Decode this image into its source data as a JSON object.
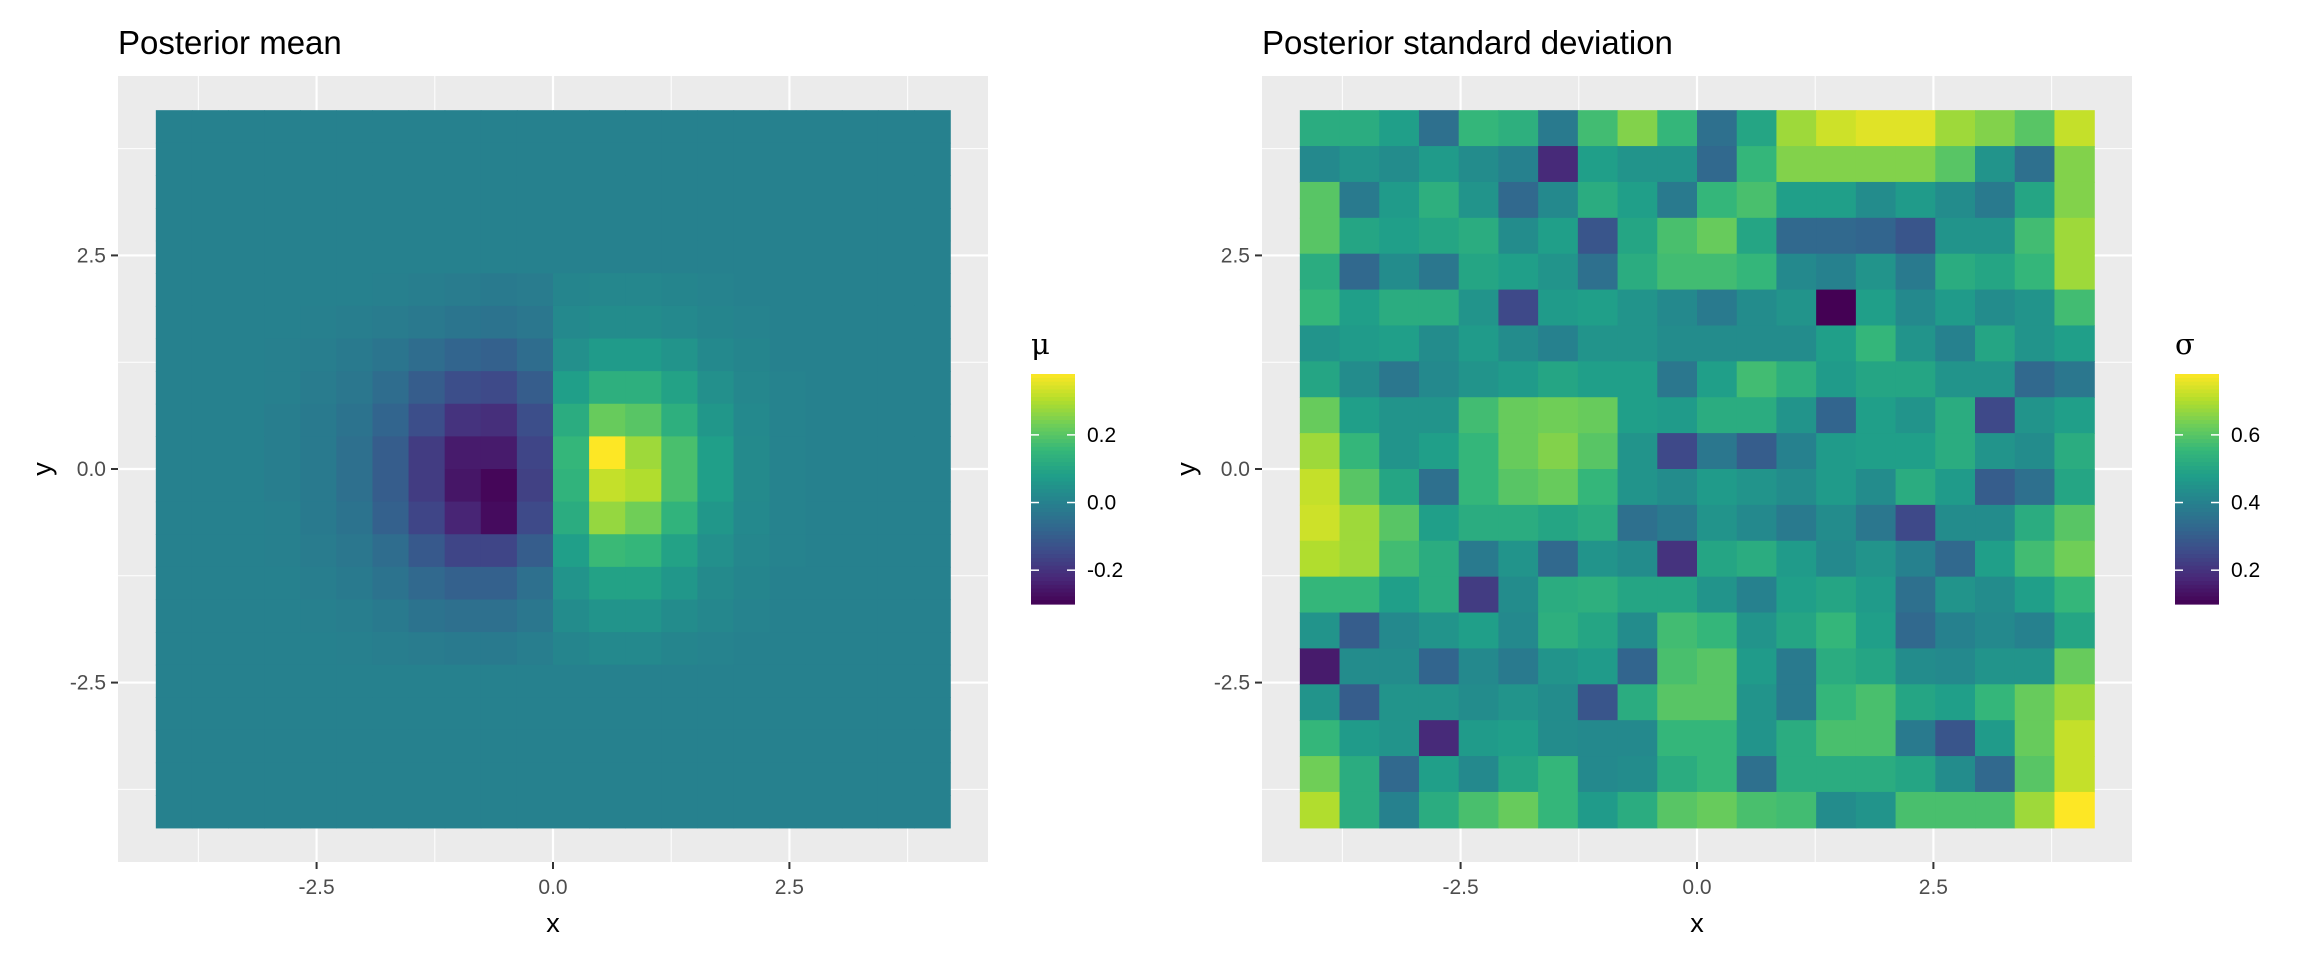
{
  "chart_data": [
    {
      "type": "heatmap",
      "title": "Posterior mean",
      "xlabel": "x",
      "ylabel": "y",
      "x_ticks": [
        "-2.5",
        "0.0",
        "2.5"
      ],
      "x_tick_values": [
        -2.5,
        0.0,
        2.5
      ],
      "y_ticks": [
        "2.5",
        "0.0",
        "-2.5"
      ],
      "y_tick_values": [
        2.5,
        0.0,
        -2.5
      ],
      "xlim": [
        -4.6,
        4.6
      ],
      "ylim": [
        -4.6,
        4.6
      ],
      "grid": true,
      "legend": {
        "title": "μ",
        "position": "right",
        "ticks": [
          "0.2",
          "0.0",
          "-0.2"
        ],
        "tick_values": [
          0.2,
          0.0,
          -0.2
        ],
        "range": [
          -0.3,
          0.38
        ]
      },
      "x_range": [
        -4.2,
        4.2
      ],
      "y_range": [
        -4.2,
        4.2
      ],
      "values": [
        [
          0,
          0,
          0,
          0,
          0,
          0,
          0,
          0,
          0,
          0,
          0,
          0,
          0,
          0,
          0,
          0,
          0,
          0,
          0,
          0,
          0,
          0
        ],
        [
          0,
          0,
          0,
          0,
          0,
          0,
          0,
          0,
          0,
          0,
          0,
          0,
          0,
          0,
          0,
          0,
          0,
          0,
          0,
          0,
          0,
          0
        ],
        [
          0,
          0,
          0,
          0,
          0,
          0,
          0,
          0,
          0,
          0,
          0,
          0,
          0,
          0,
          0,
          0,
          0,
          0,
          0,
          0,
          0,
          0
        ],
        [
          0,
          0,
          0,
          0,
          0,
          0,
          0,
          0,
          0,
          0,
          0,
          0,
          0,
          0,
          0,
          0,
          0,
          0,
          0,
          0,
          0,
          0
        ],
        [
          0,
          0,
          0,
          0,
          0,
          0,
          0,
          0,
          0,
          0,
          0,
          0,
          0,
          0,
          0,
          0,
          0,
          0,
          0,
          0,
          0,
          0
        ],
        [
          0,
          0,
          0,
          0,
          0,
          0,
          -0.005,
          -0.01,
          -0.015,
          -0.02,
          -0.015,
          0.01,
          0.015,
          0.015,
          0.01,
          0.005,
          0,
          0,
          0,
          0,
          0,
          0
        ],
        [
          0,
          0,
          0,
          0,
          -0.005,
          -0.01,
          -0.015,
          -0.025,
          -0.035,
          -0.04,
          -0.03,
          0.02,
          0.03,
          0.03,
          0.02,
          0.01,
          0.005,
          0,
          0,
          0,
          0,
          0
        ],
        [
          0,
          0,
          0,
          -0.005,
          -0.01,
          -0.02,
          -0.035,
          -0.06,
          -0.08,
          -0.09,
          -0.06,
          0.04,
          0.07,
          0.07,
          0.05,
          0.02,
          0.01,
          0,
          0,
          0,
          0,
          0
        ],
        [
          0,
          0,
          0,
          -0.005,
          -0.015,
          -0.03,
          -0.06,
          -0.1,
          -0.14,
          -0.15,
          -0.1,
          0.08,
          0.13,
          0.13,
          0.09,
          0.04,
          0.015,
          0.005,
          0,
          0,
          0,
          0
        ],
        [
          0,
          0,
          0,
          -0.01,
          -0.02,
          -0.04,
          -0.08,
          -0.14,
          -0.2,
          -0.21,
          -0.14,
          0.12,
          0.22,
          0.2,
          0.13,
          0.06,
          0.02,
          0.005,
          0,
          0,
          0,
          0
        ],
        [
          0,
          0,
          0,
          -0.01,
          -0.02,
          -0.05,
          -0.1,
          -0.18,
          -0.25,
          -0.25,
          -0.16,
          0.15,
          0.38,
          0.28,
          0.18,
          0.08,
          0.025,
          0.005,
          0,
          0,
          0,
          0
        ],
        [
          0,
          0,
          0,
          -0.01,
          -0.02,
          -0.05,
          -0.1,
          -0.18,
          -0.26,
          -0.29,
          -0.17,
          0.14,
          0.32,
          0.3,
          0.18,
          0.08,
          0.025,
          0.005,
          0,
          0,
          0,
          0
        ],
        [
          0,
          0,
          0,
          -0.005,
          -0.02,
          -0.04,
          -0.09,
          -0.16,
          -0.23,
          -0.28,
          -0.15,
          0.12,
          0.27,
          0.23,
          0.14,
          0.06,
          0.02,
          0.005,
          0,
          0,
          0,
          0
        ],
        [
          0,
          0,
          0,
          -0.005,
          -0.015,
          -0.03,
          -0.06,
          -0.11,
          -0.16,
          -0.16,
          -0.1,
          0.08,
          0.16,
          0.15,
          0.09,
          0.04,
          0.015,
          0.005,
          0,
          0,
          0,
          0
        ],
        [
          0,
          0,
          0,
          0,
          -0.01,
          -0.02,
          -0.04,
          -0.07,
          -0.09,
          -0.09,
          -0.05,
          0.05,
          0.09,
          0.09,
          0.06,
          0.025,
          0.01,
          0,
          0,
          0,
          0,
          0
        ],
        [
          0,
          0,
          0,
          0,
          -0.005,
          -0.01,
          -0.02,
          -0.04,
          -0.05,
          -0.05,
          -0.03,
          0.03,
          0.05,
          0.05,
          0.03,
          0.015,
          0.005,
          0,
          0,
          0,
          0,
          0
        ],
        [
          0,
          0,
          0,
          0,
          0,
          -0.005,
          -0.01,
          -0.015,
          -0.02,
          -0.02,
          -0.01,
          0.01,
          0.02,
          0.02,
          0.01,
          0.005,
          0,
          0,
          0,
          0,
          0,
          0
        ],
        [
          0,
          0,
          0,
          0,
          0,
          0,
          0,
          0,
          0,
          0,
          0,
          0,
          0,
          0,
          0,
          0,
          0,
          0,
          0,
          0,
          0,
          0
        ],
        [
          0,
          0,
          0,
          0,
          0,
          0,
          0,
          0,
          0,
          0,
          0,
          0,
          0,
          0,
          0,
          0,
          0,
          0,
          0,
          0,
          0,
          0
        ],
        [
          0,
          0,
          0,
          0,
          0,
          0,
          0,
          0,
          0,
          0,
          0,
          0,
          0,
          0,
          0,
          0,
          0,
          0,
          0,
          0,
          0,
          0
        ],
        [
          0,
          0,
          0,
          0,
          0,
          0,
          0,
          0,
          0,
          0,
          0,
          0,
          0,
          0,
          0,
          0,
          0,
          0,
          0,
          0,
          0,
          0
        ],
        [
          0,
          0,
          0,
          0,
          0,
          0,
          0,
          0,
          0,
          0,
          0,
          0,
          0,
          0,
          0,
          0,
          0,
          0,
          0,
          0,
          0,
          0
        ]
      ]
    },
    {
      "type": "heatmap",
      "title": "Posterior standard deviation",
      "xlabel": "x",
      "ylabel": "y",
      "x_ticks": [
        "-2.5",
        "0.0",
        "2.5"
      ],
      "x_tick_values": [
        -2.5,
        0.0,
        2.5
      ],
      "y_ticks": [
        "2.5",
        "0.0",
        "-2.5"
      ],
      "y_tick_values": [
        2.5,
        0.0,
        -2.5
      ],
      "xlim": [
        -4.6,
        4.6
      ],
      "ylim": [
        -4.6,
        4.6
      ],
      "grid": true,
      "legend": {
        "title": "σ",
        "position": "right",
        "ticks": [
          "0.6",
          "0.4",
          "0.2"
        ],
        "tick_values": [
          0.6,
          0.4,
          0.2
        ],
        "range": [
          0.1,
          0.78
        ]
      },
      "x_range": [
        -4.2,
        4.2
      ],
      "y_range": [
        -4.2,
        4.2
      ],
      "values": [
        [
          0.52,
          0.52,
          0.48,
          0.35,
          0.55,
          0.53,
          0.38,
          0.57,
          0.65,
          0.55,
          0.35,
          0.5,
          0.68,
          0.73,
          0.75,
          0.75,
          0.68,
          0.65,
          0.6,
          0.72
        ],
        [
          0.42,
          0.45,
          0.43,
          0.47,
          0.43,
          0.4,
          0.18,
          0.48,
          0.45,
          0.45,
          0.33,
          0.55,
          0.65,
          0.65,
          0.65,
          0.65,
          0.6,
          0.45,
          0.35,
          0.65
        ],
        [
          0.6,
          0.38,
          0.47,
          0.53,
          0.45,
          0.33,
          0.42,
          0.52,
          0.48,
          0.38,
          0.55,
          0.58,
          0.48,
          0.48,
          0.43,
          0.47,
          0.43,
          0.38,
          0.5,
          0.65
        ],
        [
          0.6,
          0.5,
          0.48,
          0.5,
          0.52,
          0.43,
          0.48,
          0.28,
          0.5,
          0.58,
          0.62,
          0.5,
          0.33,
          0.33,
          0.32,
          0.28,
          0.45,
          0.45,
          0.57,
          0.68
        ],
        [
          0.52,
          0.33,
          0.43,
          0.37,
          0.5,
          0.48,
          0.45,
          0.35,
          0.52,
          0.57,
          0.57,
          0.55,
          0.42,
          0.4,
          0.45,
          0.38,
          0.52,
          0.5,
          0.55,
          0.68
        ],
        [
          0.55,
          0.48,
          0.52,
          0.52,
          0.45,
          0.25,
          0.47,
          0.48,
          0.45,
          0.42,
          0.38,
          0.43,
          0.45,
          0.1,
          0.48,
          0.42,
          0.47,
          0.43,
          0.45,
          0.57
        ],
        [
          0.45,
          0.47,
          0.48,
          0.43,
          0.47,
          0.43,
          0.4,
          0.45,
          0.45,
          0.43,
          0.43,
          0.43,
          0.43,
          0.48,
          0.55,
          0.45,
          0.4,
          0.5,
          0.45,
          0.48
        ],
        [
          0.5,
          0.43,
          0.37,
          0.42,
          0.45,
          0.47,
          0.5,
          0.48,
          0.48,
          0.37,
          0.48,
          0.57,
          0.53,
          0.47,
          0.5,
          0.5,
          0.45,
          0.45,
          0.33,
          0.37
        ],
        [
          0.62,
          0.48,
          0.45,
          0.45,
          0.57,
          0.62,
          0.63,
          0.62,
          0.48,
          0.47,
          0.52,
          0.52,
          0.45,
          0.32,
          0.48,
          0.45,
          0.52,
          0.25,
          0.45,
          0.48
        ],
        [
          0.68,
          0.55,
          0.45,
          0.48,
          0.55,
          0.62,
          0.65,
          0.6,
          0.45,
          0.25,
          0.37,
          0.3,
          0.4,
          0.47,
          0.48,
          0.48,
          0.52,
          0.45,
          0.43,
          0.52
        ],
        [
          0.72,
          0.6,
          0.5,
          0.35,
          0.55,
          0.6,
          0.62,
          0.55,
          0.45,
          0.43,
          0.47,
          0.45,
          0.43,
          0.47,
          0.43,
          0.52,
          0.47,
          0.3,
          0.35,
          0.5
        ],
        [
          0.73,
          0.68,
          0.6,
          0.48,
          0.52,
          0.52,
          0.5,
          0.52,
          0.35,
          0.38,
          0.45,
          0.42,
          0.38,
          0.43,
          0.37,
          0.25,
          0.43,
          0.43,
          0.52,
          0.6
        ],
        [
          0.7,
          0.68,
          0.57,
          0.52,
          0.38,
          0.45,
          0.33,
          0.45,
          0.43,
          0.2,
          0.5,
          0.52,
          0.47,
          0.42,
          0.45,
          0.4,
          0.33,
          0.48,
          0.57,
          0.63
        ],
        [
          0.55,
          0.55,
          0.48,
          0.52,
          0.22,
          0.43,
          0.52,
          0.53,
          0.5,
          0.5,
          0.45,
          0.4,
          0.48,
          0.5,
          0.47,
          0.35,
          0.45,
          0.43,
          0.48,
          0.55
        ],
        [
          0.45,
          0.3,
          0.42,
          0.45,
          0.48,
          0.42,
          0.53,
          0.5,
          0.43,
          0.57,
          0.55,
          0.45,
          0.5,
          0.55,
          0.48,
          0.33,
          0.4,
          0.42,
          0.4,
          0.5
        ],
        [
          0.15,
          0.43,
          0.43,
          0.32,
          0.42,
          0.38,
          0.45,
          0.47,
          0.32,
          0.58,
          0.6,
          0.47,
          0.38,
          0.52,
          0.5,
          0.43,
          0.42,
          0.45,
          0.45,
          0.62
        ],
        [
          0.45,
          0.3,
          0.45,
          0.45,
          0.43,
          0.45,
          0.43,
          0.28,
          0.52,
          0.6,
          0.6,
          0.45,
          0.38,
          0.55,
          0.58,
          0.5,
          0.48,
          0.55,
          0.62,
          0.68
        ],
        [
          0.55,
          0.47,
          0.45,
          0.18,
          0.47,
          0.48,
          0.43,
          0.42,
          0.42,
          0.55,
          0.55,
          0.45,
          0.52,
          0.58,
          0.58,
          0.38,
          0.28,
          0.47,
          0.62,
          0.72
        ],
        [
          0.63,
          0.52,
          0.33,
          0.48,
          0.42,
          0.5,
          0.55,
          0.42,
          0.43,
          0.52,
          0.55,
          0.35,
          0.52,
          0.52,
          0.52,
          0.5,
          0.43,
          0.33,
          0.6,
          0.72
        ],
        [
          0.7,
          0.52,
          0.4,
          0.52,
          0.58,
          0.62,
          0.55,
          0.47,
          0.52,
          0.6,
          0.62,
          0.58,
          0.57,
          0.43,
          0.45,
          0.58,
          0.58,
          0.58,
          0.68,
          0.78
        ]
      ]
    }
  ]
}
